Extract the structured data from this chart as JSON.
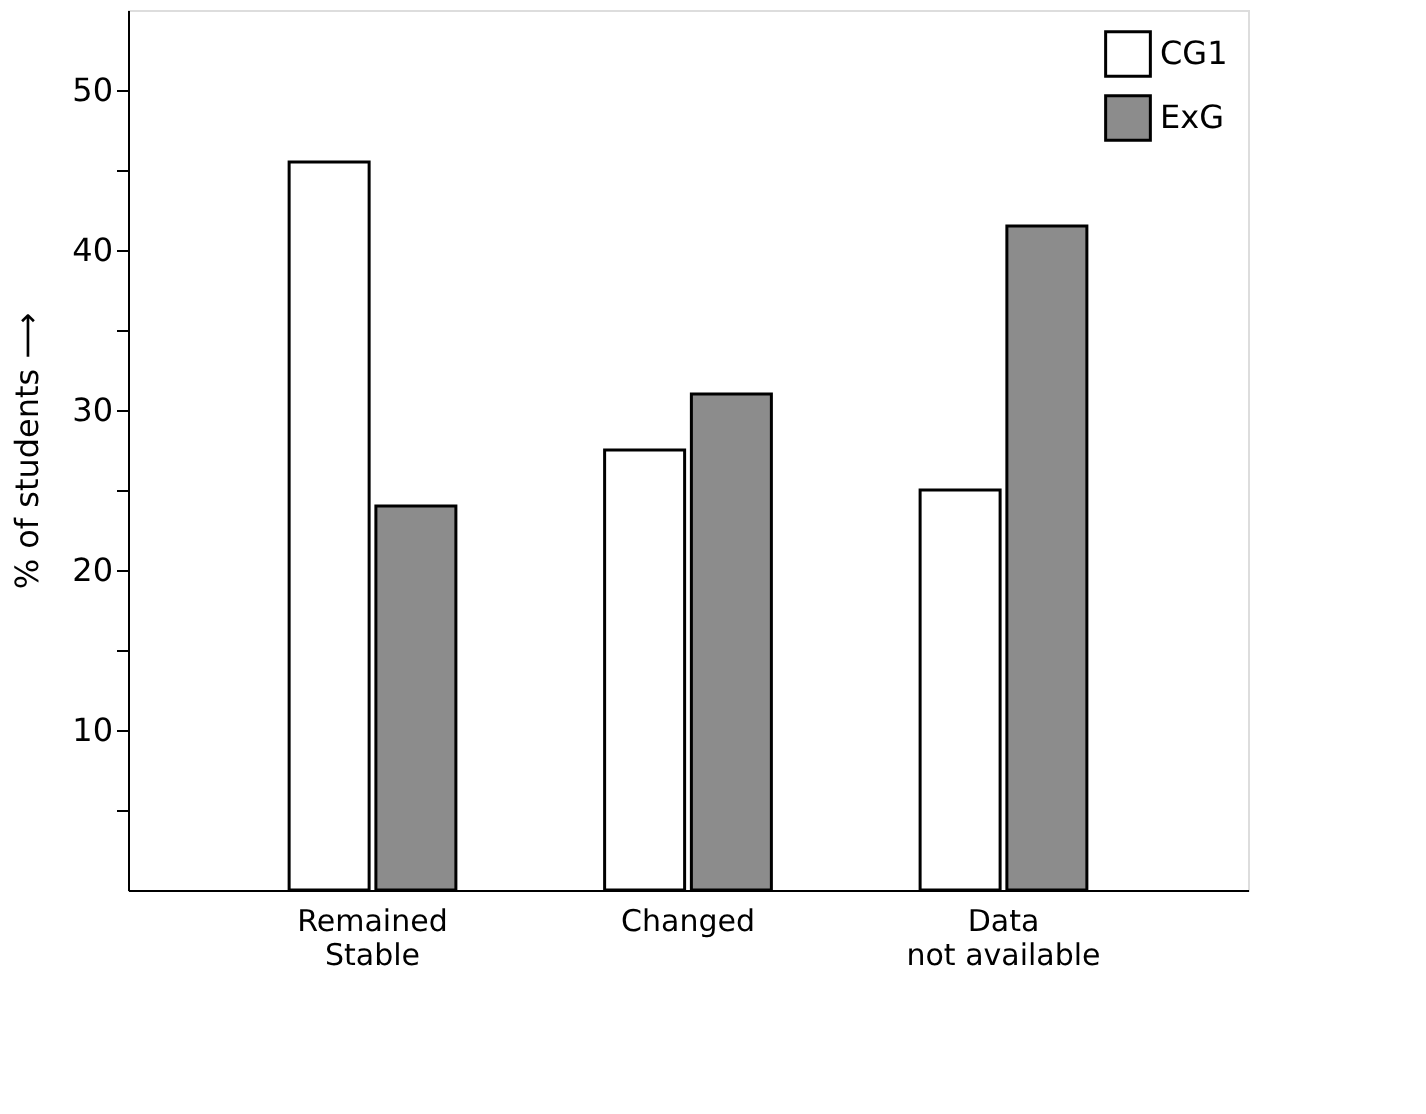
{
  "chart_data": {
    "type": "bar",
    "categories": [
      "Remained Stable",
      "Changed",
      "Data not available"
    ],
    "series": [
      {
        "name": "CG1",
        "color": "#ffffff",
        "values": [
          45.5,
          27.5,
          25
        ]
      },
      {
        "name": "ExG",
        "color": "#8c8c8c",
        "values": [
          24,
          31,
          41.5
        ]
      }
    ],
    "ylabel": "% of students ⟶",
    "ylim": [
      0,
      55
    ],
    "yticks": [
      {
        "value": 5,
        "label": null
      },
      10,
      {
        "value": 15,
        "label": null
      },
      20,
      {
        "value": 25,
        "label": null
      },
      30,
      {
        "value": 35,
        "label": null
      },
      40,
      {
        "value": 45,
        "label": null
      },
      50
    ],
    "grid": false,
    "legend": "top right"
  }
}
